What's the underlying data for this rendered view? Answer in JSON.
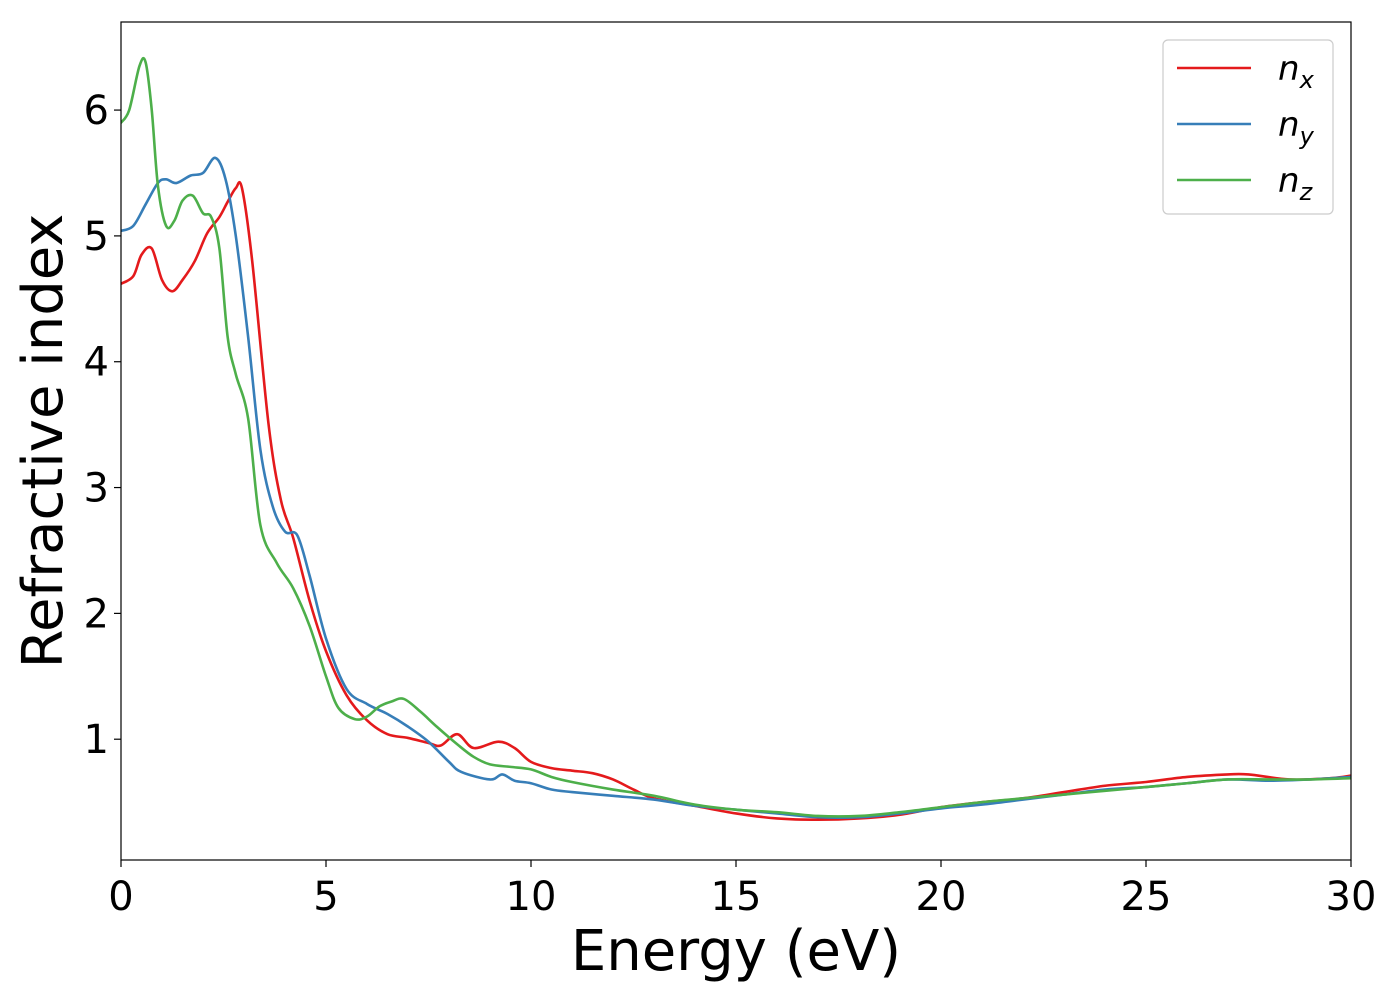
{
  "chart_data": {
    "type": "line",
    "xlabel": "Energy (eV)",
    "ylabel": "Refractive index",
    "xlim": [
      0,
      30
    ],
    "ylim": [
      0.04,
      6.7
    ],
    "xticks": [
      0,
      5,
      10,
      15,
      20,
      25,
      30
    ],
    "yticks": [
      1,
      2,
      3,
      4,
      5,
      6
    ],
    "grid": false,
    "legend_position": "top-right",
    "series": [
      {
        "name": "n_x",
        "label_main": "n",
        "label_sub": "x",
        "color": "#e41a1c",
        "x": [
          0,
          0.3,
          0.5,
          0.75,
          1.0,
          1.25,
          1.5,
          1.8,
          2.1,
          2.4,
          2.6,
          2.8,
          2.95,
          3.2,
          3.6,
          3.9,
          4.2,
          4.6,
          5.0,
          5.5,
          6.0,
          6.5,
          7.0,
          7.5,
          7.8,
          8.2,
          8.6,
          9.2,
          9.6,
          10.0,
          10.5,
          11.0,
          11.5,
          12.0,
          12.5,
          13.0,
          14.0,
          15.0,
          16.0,
          17.0,
          18.0,
          19.0,
          20.0,
          21.0,
          22.0,
          23.0,
          24.0,
          25.0,
          26.0,
          27.0,
          27.5,
          28.5,
          29.5,
          30.0
        ],
        "y": [
          4.62,
          4.68,
          4.85,
          4.9,
          4.65,
          4.56,
          4.65,
          4.8,
          5.02,
          5.15,
          5.27,
          5.38,
          5.38,
          4.8,
          3.5,
          2.9,
          2.6,
          2.1,
          1.7,
          1.35,
          1.15,
          1.04,
          1.01,
          0.97,
          0.95,
          1.04,
          0.93,
          0.98,
          0.93,
          0.82,
          0.77,
          0.75,
          0.73,
          0.68,
          0.6,
          0.53,
          0.47,
          0.41,
          0.37,
          0.36,
          0.37,
          0.4,
          0.46,
          0.5,
          0.53,
          0.58,
          0.63,
          0.66,
          0.7,
          0.72,
          0.72,
          0.68,
          0.69,
          0.71
        ]
      },
      {
        "name": "n_y",
        "label_main": "n",
        "label_sub": "y",
        "color": "#377eb8",
        "x": [
          0,
          0.3,
          0.6,
          0.9,
          1.1,
          1.35,
          1.7,
          2.0,
          2.3,
          2.55,
          2.8,
          3.1,
          3.4,
          3.7,
          4.0,
          4.3,
          4.6,
          5.0,
          5.5,
          6.0,
          6.5,
          7.0,
          7.5,
          8.0,
          8.3,
          9.0,
          9.3,
          9.6,
          10.0,
          10.5,
          11.0,
          12.0,
          13.0,
          14.0,
          15.0,
          16.0,
          17.0,
          18.0,
          19.0,
          20.0,
          21.0,
          22.0,
          23.0,
          24.0,
          25.0,
          26.0,
          27.0,
          28.0,
          29.0,
          30.0
        ],
        "y": [
          5.04,
          5.08,
          5.25,
          5.42,
          5.45,
          5.42,
          5.48,
          5.5,
          5.62,
          5.45,
          5.0,
          4.2,
          3.3,
          2.85,
          2.65,
          2.62,
          2.3,
          1.8,
          1.4,
          1.28,
          1.2,
          1.1,
          0.98,
          0.82,
          0.74,
          0.68,
          0.72,
          0.67,
          0.65,
          0.6,
          0.58,
          0.55,
          0.52,
          0.47,
          0.44,
          0.41,
          0.38,
          0.38,
          0.41,
          0.45,
          0.48,
          0.52,
          0.56,
          0.6,
          0.62,
          0.65,
          0.68,
          0.67,
          0.68,
          0.7
        ]
      },
      {
        "name": "n_z",
        "label_main": "n",
        "label_sub": "z",
        "color": "#4daf4a",
        "x": [
          0,
          0.2,
          0.45,
          0.6,
          0.75,
          0.9,
          1.1,
          1.3,
          1.5,
          1.75,
          2.0,
          2.2,
          2.4,
          2.6,
          2.8,
          3.1,
          3.4,
          3.8,
          4.2,
          4.6,
          5.0,
          5.3,
          5.7,
          6.0,
          6.3,
          6.6,
          6.9,
          7.3,
          7.7,
          8.2,
          8.6,
          9.0,
          9.5,
          10.0,
          10.5,
          11.0,
          12.0,
          13.0,
          14.0,
          15.0,
          16.0,
          17.0,
          18.0,
          19.0,
          20.0,
          21.0,
          22.0,
          23.0,
          24.0,
          25.0,
          26.0,
          27.0,
          28.0,
          29.0,
          30.0
        ],
        "y": [
          5.9,
          6.0,
          6.35,
          6.38,
          6.0,
          5.4,
          5.08,
          5.12,
          5.28,
          5.32,
          5.18,
          5.15,
          4.9,
          4.2,
          3.9,
          3.55,
          2.7,
          2.4,
          2.2,
          1.9,
          1.5,
          1.25,
          1.16,
          1.18,
          1.26,
          1.3,
          1.32,
          1.22,
          1.1,
          0.96,
          0.86,
          0.8,
          0.78,
          0.76,
          0.7,
          0.66,
          0.6,
          0.55,
          0.48,
          0.44,
          0.42,
          0.39,
          0.39,
          0.42,
          0.46,
          0.5,
          0.53,
          0.56,
          0.59,
          0.62,
          0.65,
          0.68,
          0.68,
          0.68,
          0.69
        ]
      }
    ]
  }
}
